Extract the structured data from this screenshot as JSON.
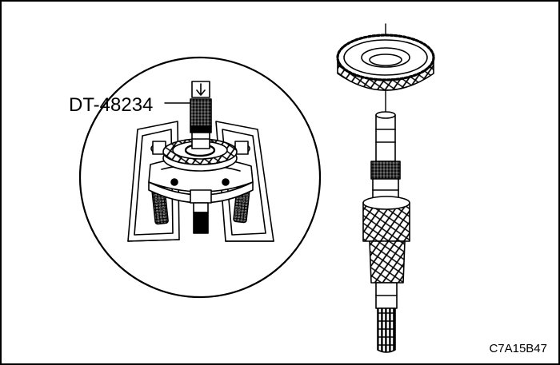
{
  "figure": {
    "tool_label": "DT-48234",
    "figure_code": "C7A15B47"
  },
  "icons": {
    "press_direction": "down-arrow-icon"
  },
  "colors": {
    "line": "#000000",
    "paper": "#ffffff"
  }
}
